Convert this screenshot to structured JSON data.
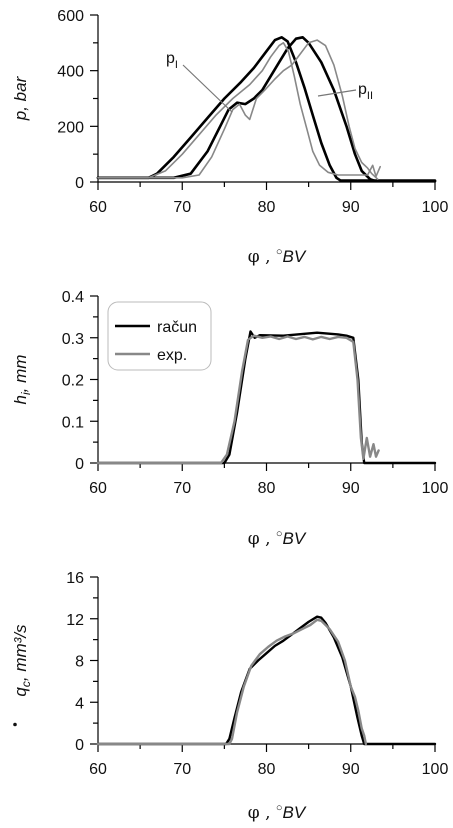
{
  "chart_data": [
    {
      "type": "line",
      "ylabel": "p, bar",
      "xlabel_sym": "φ",
      "xlabel_unit": "BV",
      "xlim": [
        60,
        100
      ],
      "ylim": [
        0,
        600
      ],
      "xticks": [
        "60",
        "70",
        "80",
        "90",
        "100"
      ],
      "yticks": [
        "0",
        "200",
        "400",
        "600"
      ],
      "annotations": [
        {
          "text": "p",
          "sub": "I"
        },
        {
          "text": "p",
          "sub": "II"
        }
      ],
      "series": [
        {
          "color": "#000000",
          "width": 2.6,
          "points": [
            [
              60,
              15
            ],
            [
              66,
              15
            ],
            [
              67,
              30
            ],
            [
              69,
              90
            ],
            [
              71,
              160
            ],
            [
              73,
              230
            ],
            [
              75,
              300
            ],
            [
              77,
              360
            ],
            [
              78.5,
              410
            ],
            [
              80,
              470
            ],
            [
              81,
              510
            ],
            [
              81.8,
              520
            ],
            [
              82.5,
              505
            ],
            [
              83.5,
              430
            ],
            [
              84.5,
              340
            ],
            [
              85.5,
              240
            ],
            [
              86.5,
              140
            ],
            [
              87.5,
              60
            ],
            [
              88.3,
              15
            ],
            [
              88.8,
              5
            ],
            [
              100,
              5
            ]
          ]
        },
        {
          "color": "#000000",
          "width": 2.6,
          "points": [
            [
              60,
              15
            ],
            [
              66,
              15
            ],
            [
              69,
              15
            ],
            [
              71,
              30
            ],
            [
              73,
              110
            ],
            [
              74.5,
              200
            ],
            [
              75.5,
              260
            ],
            [
              76.5,
              285
            ],
            [
              77.5,
              280
            ],
            [
              78.5,
              300
            ],
            [
              79.5,
              330
            ],
            [
              80.5,
              380
            ],
            [
              81.5,
              430
            ],
            [
              82.5,
              480
            ],
            [
              83.5,
              515
            ],
            [
              84.3,
              520
            ],
            [
              85,
              500
            ],
            [
              86.5,
              430
            ],
            [
              88,
              330
            ],
            [
              89.5,
              200
            ],
            [
              90.5,
              100
            ],
            [
              91.3,
              40
            ],
            [
              92.3,
              10
            ],
            [
              93,
              3
            ],
            [
              100,
              3
            ]
          ]
        },
        {
          "color": "#888888",
          "width": 1.6,
          "points": [
            [
              60,
              15
            ],
            [
              66,
              15
            ],
            [
              68,
              40
            ],
            [
              70,
              100
            ],
            [
              72,
              170
            ],
            [
              74,
              240
            ],
            [
              76,
              300
            ],
            [
              78,
              350
            ],
            [
              79.5,
              400
            ],
            [
              80.5,
              450
            ],
            [
              81.5,
              490
            ],
            [
              82,
              500
            ],
            [
              82.6,
              470
            ],
            [
              83.3,
              380
            ],
            [
              84,
              280
            ],
            [
              84.8,
              190
            ],
            [
              85.5,
              110
            ],
            [
              86.3,
              60
            ],
            [
              87.3,
              35
            ],
            [
              88.5,
              25
            ],
            [
              92,
              25
            ],
            [
              92.6,
              60
            ],
            [
              93,
              20
            ],
            [
              93.5,
              55
            ]
          ]
        },
        {
          "color": "#888888",
          "width": 1.6,
          "points": [
            [
              60,
              15
            ],
            [
              66,
              15
            ],
            [
              70,
              15
            ],
            [
              72,
              25
            ],
            [
              73.5,
              90
            ],
            [
              75,
              190
            ],
            [
              76,
              260
            ],
            [
              76.8,
              280
            ],
            [
              77.5,
              240
            ],
            [
              78,
              225
            ],
            [
              78.8,
              300
            ],
            [
              79.8,
              330
            ],
            [
              81,
              370
            ],
            [
              82,
              400
            ],
            [
              83,
              420
            ],
            [
              84,
              460
            ],
            [
              85,
              500
            ],
            [
              86,
              510
            ],
            [
              87,
              490
            ],
            [
              88,
              420
            ],
            [
              89,
              310
            ],
            [
              89.8,
              200
            ],
            [
              90.5,
              120
            ],
            [
              91.3,
              70
            ],
            [
              92,
              50
            ],
            [
              92.5,
              30
            ],
            [
              93.2,
              10
            ]
          ]
        }
      ]
    },
    {
      "type": "line",
      "ylabel": "h, mm",
      "ylabel_sub": "i",
      "xlabel_sym": "φ",
      "xlabel_unit": "BV",
      "xlim": [
        60,
        100
      ],
      "ylim": [
        0,
        0.4
      ],
      "xticks": [
        "60",
        "70",
        "80",
        "90",
        "100"
      ],
      "yticks": [
        "0",
        "0.1",
        "0.2",
        "0.3",
        "0.4"
      ],
      "legend": [
        "račun",
        "exp."
      ],
      "series": [
        {
          "name": "račun",
          "color": "#000000",
          "width": 2.4,
          "points": [
            [
              60,
              0
            ],
            [
              75,
              0
            ],
            [
              75.6,
              0.02
            ],
            [
              76.5,
              0.12
            ],
            [
              77.5,
              0.25
            ],
            [
              78.1,
              0.315
            ],
            [
              78.6,
              0.3
            ],
            [
              79.2,
              0.306
            ],
            [
              82,
              0.305
            ],
            [
              86,
              0.312
            ],
            [
              88.5,
              0.308
            ],
            [
              89.5,
              0.305
            ],
            [
              90.3,
              0.3
            ],
            [
              90.9,
              0.2
            ],
            [
              91.3,
              0.05
            ],
            [
              91.6,
              0
            ],
            [
              100,
              0
            ]
          ]
        },
        {
          "name": "exp.",
          "color": "#888888",
          "width": 2.4,
          "points": [
            [
              60,
              0
            ],
            [
              74.6,
              0
            ],
            [
              75.3,
              0.02
            ],
            [
              76.2,
              0.1
            ],
            [
              77.1,
              0.22
            ],
            [
              77.8,
              0.295
            ],
            [
              78.5,
              0.305
            ],
            [
              79.5,
              0.3
            ],
            [
              80.5,
              0.303
            ],
            [
              81.5,
              0.297
            ],
            [
              82.5,
              0.303
            ],
            [
              83.5,
              0.297
            ],
            [
              84.5,
              0.302
            ],
            [
              85.5,
              0.296
            ],
            [
              86.5,
              0.302
            ],
            [
              87.5,
              0.297
            ],
            [
              88.5,
              0.302
            ],
            [
              89.5,
              0.3
            ],
            [
              90.3,
              0.29
            ],
            [
              90.8,
              0.2
            ],
            [
              91.2,
              0.06
            ],
            [
              91.5,
              0.01
            ],
            [
              91.9,
              0.06
            ],
            [
              92.3,
              0.015
            ],
            [
              92.7,
              0.045
            ],
            [
              93,
              0.015
            ],
            [
              93.3,
              0.03
            ]
          ]
        }
      ]
    },
    {
      "type": "line",
      "ylabel": "q, mm³/s",
      "ylabel_sub": "c",
      "xlabel_sym": "φ",
      "xlabel_unit": "BV",
      "xlim": [
        60,
        100
      ],
      "ylim": [
        0,
        16
      ],
      "xticks": [
        "60",
        "70",
        "80",
        "90",
        "100"
      ],
      "yticks": [
        "0",
        "4",
        "8",
        "12",
        "16"
      ],
      "series": [
        {
          "color": "#000000",
          "width": 2.4,
          "points": [
            [
              60,
              0
            ],
            [
              75.2,
              0
            ],
            [
              75.6,
              0.5
            ],
            [
              76.2,
              2.5
            ],
            [
              77,
              5
            ],
            [
              78,
              7.2
            ],
            [
              79,
              8
            ],
            [
              80,
              8.7
            ],
            [
              81,
              9.4
            ],
            [
              82,
              9.9
            ],
            [
              83,
              10.5
            ],
            [
              84,
              11.1
            ],
            [
              85,
              11.7
            ],
            [
              86,
              12.2
            ],
            [
              86.5,
              12.1
            ],
            [
              87,
              11.6
            ],
            [
              88,
              10.2
            ],
            [
              89,
              8.3
            ],
            [
              90,
              5.5
            ],
            [
              90.8,
              2.5
            ],
            [
              91.3,
              0.8
            ],
            [
              91.6,
              0
            ],
            [
              100,
              0
            ]
          ]
        },
        {
          "color": "#888888",
          "width": 2.4,
          "points": [
            [
              60,
              0
            ],
            [
              75.6,
              0
            ],
            [
              75.9,
              0.5
            ],
            [
              76.5,
              3
            ],
            [
              77.3,
              5.5
            ],
            [
              78.2,
              7.5
            ],
            [
              79.2,
              8.6
            ],
            [
              80.2,
              9.3
            ],
            [
              81.2,
              9.9
            ],
            [
              82.2,
              10.3
            ],
            [
              83.2,
              10.6
            ],
            [
              84.2,
              11
            ],
            [
              85.2,
              11.4
            ],
            [
              86,
              11.9
            ],
            [
              86.5,
              11.8
            ],
            [
              87.5,
              11
            ],
            [
              88.5,
              9.8
            ],
            [
              89.3,
              8
            ],
            [
              90,
              5.5
            ],
            [
              90.5,
              4.5
            ],
            [
              90.9,
              3.2
            ],
            [
              91.3,
              1.5
            ],
            [
              91.6,
              0.8
            ],
            [
              91.8,
              0
            ]
          ]
        }
      ]
    }
  ]
}
